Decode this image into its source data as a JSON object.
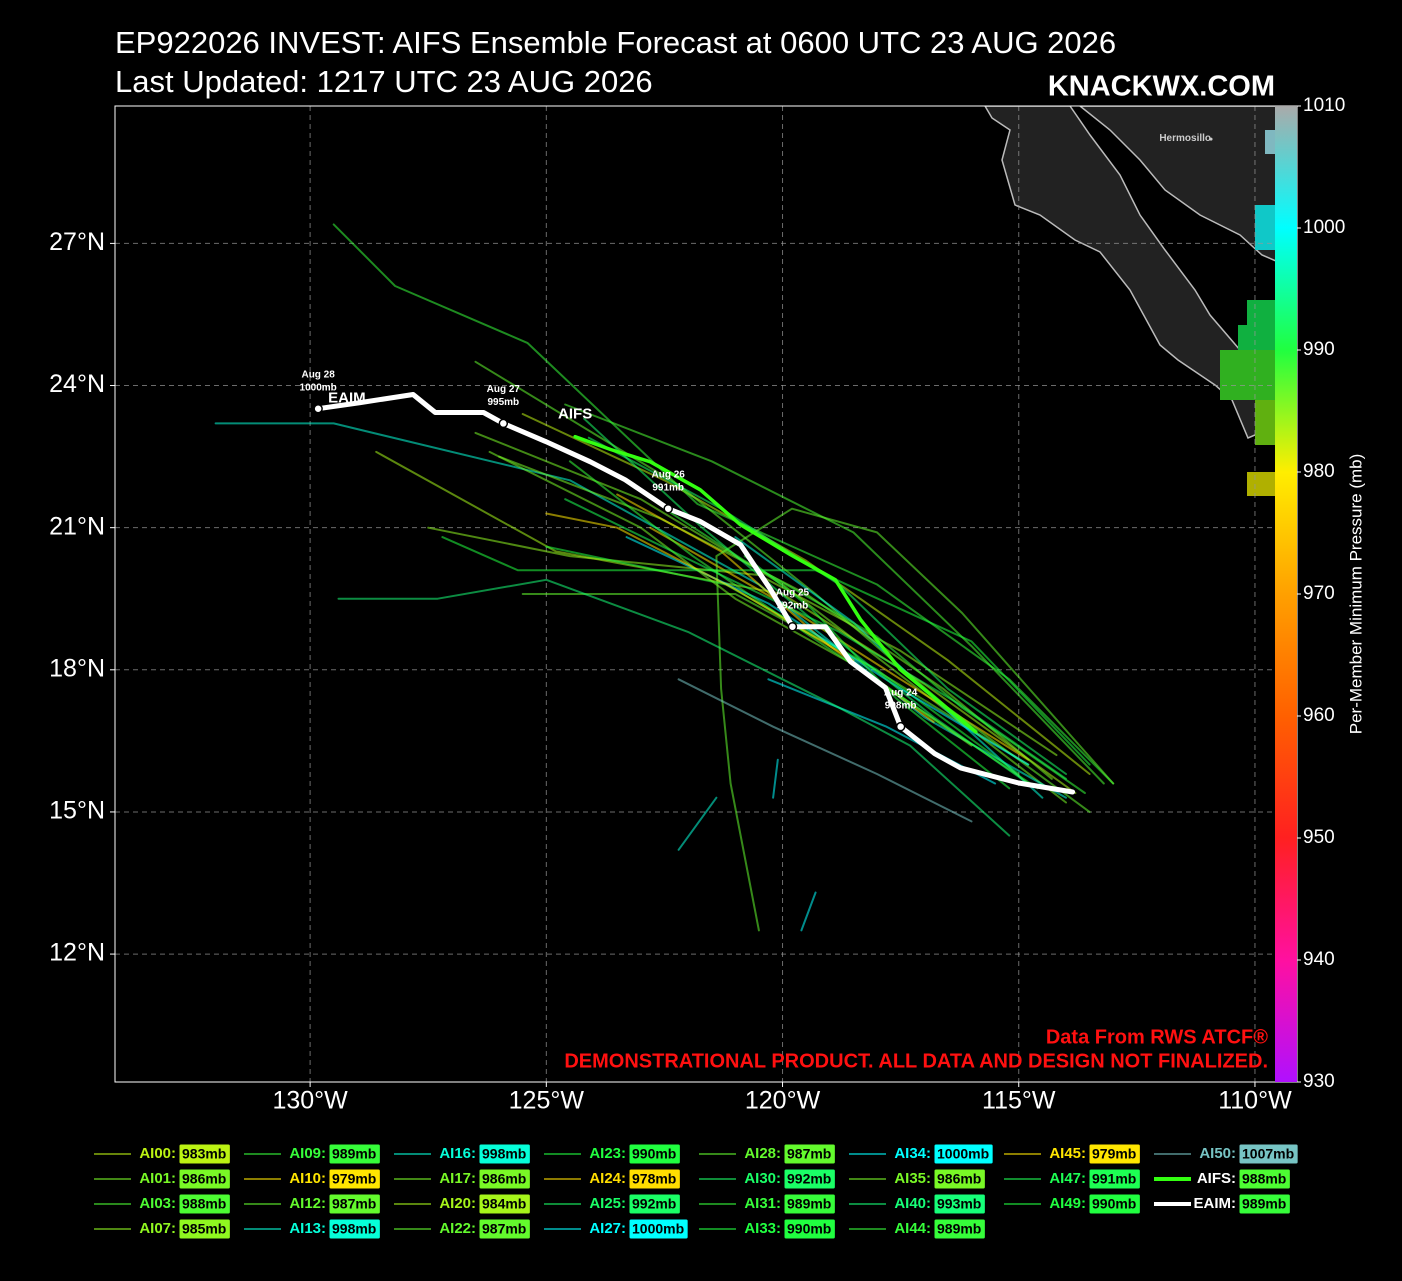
{
  "chart_data": {
    "type": "track",
    "title": "EP922026 INVEST: AIFS Ensemble Forecast at 0600 UTC 23 AUG 2026",
    "subtitle": "Last Updated: 1217 UTC 23 AUG 2026",
    "watermark": "KNACKWX.COM",
    "source_note": "Data From RWS ATCF®",
    "disclaimer": "DEMONSTRATIONAL PRODUCT. ALL DATA AND DESIGN NOT FINALIZED.",
    "xlim": [
      -134.13,
      -109.11
    ],
    "ylim": [
      9.3,
      29.9
    ],
    "xticks": [
      {
        "value": -130,
        "label": "130°W"
      },
      {
        "value": -125,
        "label": "125°W"
      },
      {
        "value": -120,
        "label": "120°W"
      },
      {
        "value": -115,
        "label": "115°W"
      },
      {
        "value": -110,
        "label": "110°W"
      }
    ],
    "yticks": [
      {
        "value": 12,
        "label": "12°N"
      },
      {
        "value": 15,
        "label": "15°N"
      },
      {
        "value": 18,
        "label": "18°N"
      },
      {
        "value": 21,
        "label": "21°N"
      },
      {
        "value": 24,
        "label": "24°N"
      },
      {
        "value": 27,
        "label": "27°N"
      }
    ],
    "grid": true,
    "colorbar": {
      "label": "Per-Member Minimum Pressure (mb)",
      "range": [
        930,
        1010
      ],
      "ticks": [
        930,
        940,
        950,
        960,
        970,
        980,
        990,
        1000,
        1010
      ],
      "stops": [
        {
          "value": 930,
          "color": "#b010ff"
        },
        {
          "value": 940,
          "color": "#ff10a0"
        },
        {
          "value": 950,
          "color": "#ff2020"
        },
        {
          "value": 960,
          "color": "#ff6000"
        },
        {
          "value": 970,
          "color": "#ffa000"
        },
        {
          "value": 980,
          "color": "#ffee00"
        },
        {
          "value": 990,
          "color": "#20ff40"
        },
        {
          "value": 1000,
          "color": "#00ffff"
        },
        {
          "value": 1010,
          "color": "#aaaaaa"
        }
      ]
    },
    "places": [
      {
        "name": "Hermosillo",
        "lon": -110.93,
        "lat": 29.2
      }
    ],
    "series": [
      {
        "name": "AI00:",
        "min_pressure": 983,
        "min_pressure_label": "983mb",
        "lon": [
          -113.5,
          -116.5,
          -119.5,
          -122.5,
          -125.5
        ],
        "lat": [
          15.8,
          18.2,
          20.3,
          22.0,
          23.4
        ]
      },
      {
        "name": "AI01:",
        "min_pressure": 986,
        "min_pressure_label": "986mb",
        "lon": [
          -114,
          -117,
          -120,
          -123,
          -126.5
        ],
        "lat": [
          15.2,
          17.5,
          19.8,
          21.6,
          23.0
        ]
      },
      {
        "name": "AI03:",
        "min_pressure": 988,
        "min_pressure_label": "988mb",
        "lon": [
          -113.2,
          -116,
          -118.5,
          -121.5,
          -124.6
        ],
        "lat": [
          15.6,
          18.5,
          20.9,
          22.4,
          23.6
        ]
      },
      {
        "name": "AI07:",
        "min_pressure": 985,
        "min_pressure_label": "985mb",
        "lon": [
          -114.2,
          -117.5,
          -120.5,
          -124.5,
          -127.5
        ],
        "lat": [
          16.2,
          18.4,
          20.0,
          20.4,
          21.0
        ]
      },
      {
        "name": "AI09:",
        "min_pressure": 989,
        "min_pressure_label": "989mb",
        "lon": [
          -113,
          -115.2,
          -118,
          -121.8,
          -125.4,
          -128.2,
          -129.5
        ],
        "lat": [
          15.6,
          17.8,
          19.8,
          21.5,
          24.9,
          26.1,
          27.4
        ]
      },
      {
        "name": "AI10:",
        "min_pressure": 979,
        "min_pressure_label": "979mb",
        "lon": [
          -114.8,
          -117.5,
          -120,
          -122.8
        ],
        "lat": [
          16.1,
          17.8,
          19.4,
          21.0
        ]
      },
      {
        "name": "AI12:",
        "min_pressure": 987,
        "min_pressure_label": "987mb",
        "lon": [
          -113.5,
          -116.5,
          -119.3,
          -122.2,
          -126.5
        ],
        "lat": [
          15.0,
          17.2,
          19.6,
          21.9,
          24.5
        ]
      },
      {
        "name": "AI13:",
        "min_pressure": 998,
        "min_pressure_label": "998mb",
        "lon": [
          -114,
          -117,
          -120.5,
          -124.5,
          -129.5,
          -132
        ],
        "lat": [
          15.3,
          17.0,
          19.8,
          22.0,
          23.2,
          23.2
        ]
      },
      {
        "name": "AI16:",
        "min_pressure": 998,
        "min_pressure_label": "998mb",
        "lon": [
          -114.5,
          -116.8,
          -118.5,
          -121,
          null,
          -122.2,
          -121.4
        ],
        "lat": [
          15.3,
          17.4,
          19.0,
          20.8,
          null,
          14.2,
          15.3
        ]
      },
      {
        "name": "AI17:",
        "min_pressure": 986,
        "min_pressure_label": "986mb",
        "lon": [
          -114.3,
          -116.6,
          -119.5,
          -122.6,
          -126
        ],
        "lat": [
          15.7,
          17.6,
          19.6,
          21.2,
          22.5
        ]
      },
      {
        "name": "AI20:",
        "min_pressure": 984,
        "min_pressure_label": "984mb",
        "lon": [
          -113.8,
          -117,
          -120,
          -124.8,
          -128.6
        ],
        "lat": [
          15.4,
          17.7,
          19.6,
          20.5,
          22.6
        ]
      },
      {
        "name": "AI22:",
        "min_pressure": 987,
        "min_pressure_label": "987mb",
        "lon": [
          -114.8,
          -118.2,
          -121,
          -125.5
        ],
        "lat": [
          16.0,
          18.1,
          19.6,
          19.6
        ]
      },
      {
        "name": "AI23:",
        "min_pressure": 990,
        "min_pressure_label": "990mb",
        "lon": [
          -115,
          -118,
          -121.2,
          -125
        ],
        "lat": [
          15.8,
          18.0,
          19.8,
          20.6
        ]
      },
      {
        "name": "AI24:",
        "min_pressure": 978,
        "min_pressure_label": "978mb",
        "lon": [
          -116.8,
          -119,
          -121.3,
          -123.5
        ],
        "lat": [
          16.9,
          18.5,
          20.5,
          21.7
        ]
      },
      {
        "name": "AI25:",
        "min_pressure": 992,
        "min_pressure_label": "992mb",
        "lon": [
          -114,
          -116.5,
          -118.8,
          -121.3,
          -124.1
        ],
        "lat": [
          15.8,
          17.6,
          19.8,
          21.4,
          22.9
        ]
      },
      {
        "name": "AI27:",
        "min_pressure": 1000,
        "min_pressure_label": "1000mb",
        "lon": [
          -114.8,
          -117.5,
          -120.3,
          -123.3,
          null,
          -119.6,
          -119.3
        ],
        "lat": [
          16.0,
          17.6,
          19.4,
          20.8,
          null,
          12.5,
          13.3
        ]
      },
      {
        "name": "AI28:",
        "min_pressure": 987,
        "min_pressure_label": "987mb",
        "lon": [
          -113,
          -116.2,
          -118,
          -119.8,
          -121.4,
          -121.3,
          -121.1,
          -120.5
        ],
        "lat": [
          15.6,
          19.2,
          20.9,
          21.4,
          20.4,
          17.6,
          15.6,
          12.5
        ]
      },
      {
        "name": "AI30:",
        "min_pressure": 992,
        "min_pressure_label": "992mb",
        "lon": [
          -114.8,
          -116.8,
          -119.3,
          -121.7,
          -124.2
        ],
        "lat": [
          15.6,
          17.0,
          19.0,
          21.0,
          23.3
        ]
      },
      {
        "name": "AI31:",
        "min_pressure": 989,
        "min_pressure_label": "989mb",
        "lon": [
          -113.6,
          -116.2,
          -118,
          -120.8,
          -122.5
        ],
        "lat": [
          15.4,
          17.2,
          18.7,
          20.3,
          21.4
        ]
      },
      {
        "name": "AI33:",
        "min_pressure": 990,
        "min_pressure_label": "990mb",
        "lon": [
          -115.2,
          -117.6,
          -119.4,
          -120.8
        ],
        "lat": [
          15.5,
          17.4,
          19.3,
          20.4
        ]
      },
      {
        "name": "AI34:",
        "min_pressure": 1000,
        "min_pressure_label": "1000mb",
        "lon": [
          -115.5,
          -117.8,
          -120.3,
          null,
          -120.2,
          -120.1
        ],
        "lat": [
          15.6,
          16.8,
          17.8,
          null,
          15.3,
          16.1
        ]
      },
      {
        "name": "AI35:",
        "min_pressure": 986,
        "min_pressure_label": "986mb",
        "lon": [
          -116,
          -118.3,
          -121,
          -123,
          -126.2
        ],
        "lat": [
          16.4,
          18.0,
          19.5,
          21.0,
          22.6
        ]
      },
      {
        "name": "AI40:",
        "min_pressure": 993,
        "min_pressure_label": "993mb",
        "lon": [
          -115.2,
          -117.3,
          -118.8,
          -122,
          -125,
          -127.3,
          -129.4
        ],
        "lat": [
          14.5,
          16.4,
          17.2,
          18.8,
          19.9,
          19.5,
          19.5
        ]
      },
      {
        "name": "AI44:",
        "min_pressure": 989,
        "min_pressure_label": "989mb",
        "lon": [
          -114.6,
          -117,
          -119.4,
          -121.9,
          -124.5
        ],
        "lat": [
          15.5,
          17.1,
          18.7,
          20.4,
          22.4
        ]
      },
      {
        "name": "AI45:",
        "min_pressure": 979,
        "min_pressure_label": "979mb",
        "lon": [
          -118.5,
          -121,
          -123.5,
          -125
        ],
        "lat": [
          18.2,
          19.7,
          21.0,
          21.3
        ]
      },
      {
        "name": "AI47:",
        "min_pressure": 991,
        "min_pressure_label": "991mb",
        "lon": [
          -114,
          -116.3,
          -118.8,
          -121.3,
          -124.6
        ],
        "lat": [
          15.7,
          17.3,
          18.8,
          20.0,
          21.6
        ]
      },
      {
        "name": "AI49:",
        "min_pressure": 990,
        "min_pressure_label": "990mb",
        "lon": [
          -113.5,
          -116,
          -119.3,
          -122.6,
          -125.6,
          -127.2
        ],
        "lat": [
          16.0,
          18.6,
          20.1,
          20.1,
          20.1,
          20.8
        ]
      },
      {
        "name": "AI50:",
        "min_pressure": 1007,
        "min_pressure_label": "1007mb",
        "lon": [
          -116,
          -118,
          -120.2,
          -122.2
        ],
        "lat": [
          14.8,
          15.8,
          16.8,
          17.8
        ]
      },
      {
        "name": "AIFS:",
        "track_label": "AIFS",
        "color": "#33ff11",
        "min_pressure": 988,
        "min_pressure_label": "988mb",
        "lon": [
          -115.91,
          -117.5,
          -118.35,
          -118.88,
          -119.83,
          -120.89,
          -121.74,
          -122.8,
          -123.64,
          -124.39
        ],
        "lat": [
          16.69,
          18.0,
          19.06,
          19.9,
          20.43,
          21.06,
          21.8,
          22.39,
          22.65,
          22.92
        ]
      },
      {
        "name": "EAIM:",
        "track_label": "EAIM",
        "color": "#ffffff",
        "min_pressure": 989,
        "min_pressure_label": "989mb",
        "lon": [
          -113.86,
          -115.0,
          -116.23,
          -116.78,
          -117.5,
          -117.82,
          -118.56,
          -119.09,
          -119.79,
          -120.25,
          -120.89,
          -121.74,
          -122.42,
          -123.33,
          -124.07,
          -125.02,
          -125.91,
          -126.33,
          -127.35,
          -127.82,
          -128.94,
          -129.83
        ],
        "lat": [
          15.42,
          15.61,
          15.93,
          16.23,
          16.8,
          17.62,
          18.17,
          18.91,
          18.91,
          19.69,
          20.64,
          21.13,
          21.4,
          22.01,
          22.39,
          22.82,
          23.2,
          23.43,
          23.43,
          23.81,
          23.64,
          23.51
        ],
        "markers": [
          {
            "date": "Aug 24",
            "pressure": 998,
            "pressure_label": "998mb",
            "lon": -117.5,
            "lat": 16.8
          },
          {
            "date": "Aug 25",
            "pressure": 992,
            "pressure_label": "992mb",
            "lon": -119.79,
            "lat": 18.91
          },
          {
            "date": "Aug 26",
            "pressure": 991,
            "pressure_label": "991mb",
            "lon": -122.42,
            "lat": 21.4
          },
          {
            "date": "Aug 27",
            "pressure": 995,
            "pressure_label": "995mb",
            "lon": -125.91,
            "lat": 23.2
          },
          {
            "date": "Aug 28",
            "pressure": 1000,
            "pressure_label": "1000mb",
            "lon": -129.83,
            "lat": 23.51
          }
        ]
      }
    ]
  }
}
